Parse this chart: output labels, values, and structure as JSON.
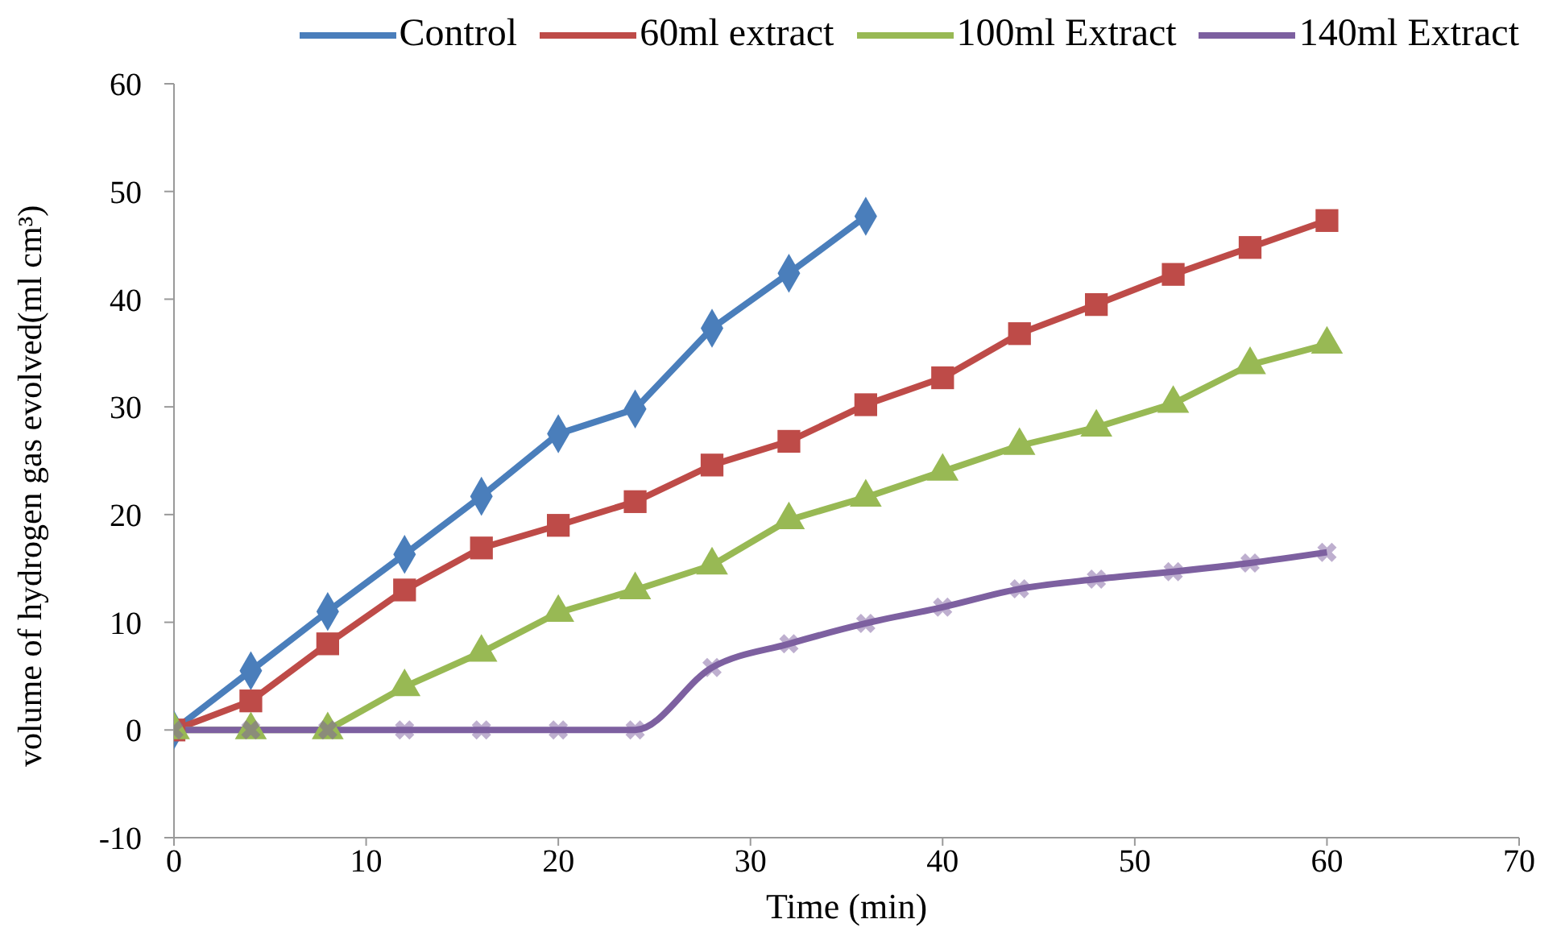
{
  "chart_data": {
    "type": "line",
    "xlabel": "Time (min)",
    "ylabel": "volume of hydrogen gas evolved(ml cm³)",
    "xlim": [
      0,
      70
    ],
    "xticks": [
      0,
      10,
      20,
      30,
      40,
      50,
      60,
      70
    ],
    "ylim": [
      -10,
      60
    ],
    "yticks": [
      -10,
      0,
      10,
      20,
      30,
      40,
      50,
      60
    ],
    "grid": false,
    "legend": "top",
    "line_style": "solid",
    "series": [
      {
        "name": "Control",
        "color": "#4a7ebb",
        "marker": "diamond",
        "x": [
          0,
          4,
          8,
          12,
          16,
          20,
          24,
          28,
          32,
          36
        ],
        "values": [
          0,
          5.5,
          11,
          16.3,
          21.7,
          27.5,
          29.8,
          37.3,
          42.4,
          47.7
        ]
      },
      {
        "name": "60ml extract",
        "color": "#be4b48",
        "marker": "square",
        "x": [
          0,
          4,
          8,
          12,
          16,
          20,
          24,
          28,
          32,
          36,
          40,
          44,
          48,
          52,
          56,
          60
        ],
        "values": [
          0,
          2.7,
          8,
          13,
          16.9,
          19,
          21.2,
          24.6,
          26.8,
          30.2,
          32.7,
          36.8,
          39.5,
          42.3,
          44.8,
          47.3
        ]
      },
      {
        "name": "100ml Extract",
        "color": "#98b954",
        "marker": "triangle",
        "x": [
          0,
          4,
          8,
          12,
          16,
          20,
          24,
          28,
          32,
          36,
          40,
          44,
          48,
          52,
          56,
          60
        ],
        "values": [
          0,
          0,
          0,
          4,
          7.2,
          10.9,
          13,
          15.3,
          19.5,
          21.6,
          24,
          26.4,
          28.1,
          30.3,
          33.9,
          35.8
        ]
      },
      {
        "name": "140ml Extract",
        "color": "#7d60a0",
        "marker": "cross",
        "x": [
          0,
          4,
          8,
          12,
          16,
          20,
          24,
          28,
          32,
          36,
          40,
          44,
          48,
          52,
          56,
          60
        ],
        "values": [
          0,
          0,
          0,
          0,
          0,
          0,
          0,
          5.8,
          8,
          9.9,
          11.4,
          13.1,
          14,
          14.7,
          15.5,
          16.5
        ]
      }
    ]
  }
}
